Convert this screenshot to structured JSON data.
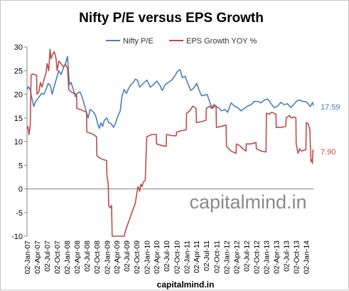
{
  "chart_data": {
    "type": "line",
    "title": "Nifty P/E versus EPS Growth",
    "xlabel": "",
    "ylabel": "",
    "ylim": [
      -10,
      30
    ],
    "y_ticks": [
      -10,
      -5,
      0,
      5,
      10,
      15,
      20,
      25,
      30
    ],
    "x_tick_labels": [
      "02-Jan-07",
      "02-Apr-07",
      "02-Jul-07",
      "02-Oct-07",
      "02-Jan-08",
      "02-Apr-08",
      "02-Jul-08",
      "02-Oct-08",
      "02-Jan-09",
      "02-Apr-09",
      "02-Jul-09",
      "02-Oct-09",
      "02-Jan-10",
      "02-Apr-10",
      "02-Jul-10",
      "02-Oct-10",
      "02-Jan-11",
      "02-Apr-11",
      "02-Jul-11",
      "02-Oct-11",
      "02-Jan-12",
      "02-Apr-12",
      "02-Jul-12",
      "02-Oct-12",
      "02-Jan-13",
      "02-Apr-13",
      "02-Jul-13",
      "02-Oct-13",
      "02-Jan-14"
    ],
    "xlim": [
      "2007-01-02",
      "2014-03-10"
    ],
    "grid": "horizontal-zero-line-only",
    "legend_position": "top",
    "watermark": "capitalmind.in",
    "footer": "capitalmind.in",
    "series": [
      {
        "name": "Nifty P/E",
        "color": "#4a7ebb",
        "end_label": "17.59",
        "points": [
          [
            "2007-01-02",
            21.0
          ],
          [
            "2007-01-15",
            21.6
          ],
          [
            "2007-02-01",
            20.9
          ],
          [
            "2007-02-15",
            19.2
          ],
          [
            "2007-03-05",
            17.4
          ],
          [
            "2007-03-20",
            18.4
          ],
          [
            "2007-04-05",
            18.9
          ],
          [
            "2007-04-25",
            19.5
          ],
          [
            "2007-05-15",
            20.2
          ],
          [
            "2007-06-05",
            20.0
          ],
          [
            "2007-06-25",
            21.0
          ],
          [
            "2007-07-15",
            22.3
          ],
          [
            "2007-08-05",
            21.8
          ],
          [
            "2007-08-20",
            20.0
          ],
          [
            "2007-09-10",
            21.8
          ],
          [
            "2007-10-01",
            23.5
          ],
          [
            "2007-10-20",
            25.0
          ],
          [
            "2007-11-10",
            24.2
          ],
          [
            "2007-12-01",
            25.5
          ],
          [
            "2007-12-20",
            26.5
          ],
          [
            "2008-01-08",
            28.0
          ],
          [
            "2008-01-25",
            22.0
          ],
          [
            "2008-02-10",
            22.5
          ],
          [
            "2008-03-01",
            21.0
          ],
          [
            "2008-03-20",
            19.5
          ],
          [
            "2008-04-10",
            20.3
          ],
          [
            "2008-05-01",
            20.5
          ],
          [
            "2008-05-20",
            19.5
          ],
          [
            "2008-06-10",
            17.8
          ],
          [
            "2008-06-30",
            16.2
          ],
          [
            "2008-07-15",
            15.0
          ],
          [
            "2008-08-01",
            16.8
          ],
          [
            "2008-08-20",
            16.5
          ],
          [
            "2008-09-10",
            16.0
          ],
          [
            "2008-09-25",
            15.2
          ],
          [
            "2008-10-10",
            13.8
          ],
          [
            "2008-10-25",
            12.8
          ],
          [
            "2008-11-10",
            14.0
          ],
          [
            "2008-11-25",
            13.2
          ],
          [
            "2008-12-10",
            14.5
          ],
          [
            "2009-01-02",
            15.0
          ],
          [
            "2009-01-20",
            14.0
          ],
          [
            "2009-02-10",
            13.8
          ],
          [
            "2009-03-05",
            13.0
          ],
          [
            "2009-03-25",
            14.0
          ],
          [
            "2009-04-15",
            15.5
          ],
          [
            "2009-05-05",
            16.5
          ],
          [
            "2009-05-20",
            19.5
          ],
          [
            "2009-06-10",
            21.0
          ],
          [
            "2009-07-01",
            20.2
          ],
          [
            "2009-07-20",
            21.2
          ],
          [
            "2009-08-10",
            22.0
          ],
          [
            "2009-09-01",
            22.5
          ],
          [
            "2009-09-20",
            23.2
          ],
          [
            "2009-10-10",
            23.0
          ],
          [
            "2009-10-30",
            21.5
          ],
          [
            "2009-11-20",
            22.0
          ],
          [
            "2009-12-10",
            22.5
          ],
          [
            "2010-01-05",
            23.0
          ],
          [
            "2010-02-05",
            21.5
          ],
          [
            "2010-03-05",
            22.0
          ],
          [
            "2010-04-05",
            22.8
          ],
          [
            "2010-05-05",
            21.8
          ],
          [
            "2010-05-25",
            20.8
          ],
          [
            "2010-06-20",
            22.0
          ],
          [
            "2010-07-20",
            22.5
          ],
          [
            "2010-08-20",
            23.0
          ],
          [
            "2010-09-20",
            24.0
          ],
          [
            "2010-10-10",
            24.8
          ],
          [
            "2010-11-05",
            25.2
          ],
          [
            "2010-11-25",
            23.5
          ],
          [
            "2010-12-20",
            23.8
          ],
          [
            "2011-01-20",
            22.0
          ],
          [
            "2011-02-10",
            20.8
          ],
          [
            "2011-03-05",
            21.2
          ],
          [
            "2011-04-05",
            22.3
          ],
          [
            "2011-04-25",
            21.0
          ],
          [
            "2011-05-20",
            19.7
          ],
          [
            "2011-06-20",
            19.8
          ],
          [
            "2011-07-10",
            20.0
          ],
          [
            "2011-08-05",
            18.2
          ],
          [
            "2011-08-25",
            17.0
          ],
          [
            "2011-09-20",
            17.5
          ],
          [
            "2011-10-20",
            17.2
          ],
          [
            "2011-11-20",
            16.5
          ],
          [
            "2011-12-20",
            16.8
          ],
          [
            "2012-01-15",
            16.2
          ],
          [
            "2012-02-15",
            18.2
          ],
          [
            "2012-03-15",
            17.5
          ],
          [
            "2012-04-15",
            17.2
          ],
          [
            "2012-05-15",
            16.5
          ],
          [
            "2012-06-15",
            17.0
          ],
          [
            "2012-07-15",
            17.5
          ],
          [
            "2012-08-15",
            17.8
          ],
          [
            "2012-09-15",
            18.5
          ],
          [
            "2012-10-15",
            18.5
          ],
          [
            "2012-11-15",
            18.2
          ],
          [
            "2012-12-15",
            18.8
          ],
          [
            "2013-01-15",
            19.0
          ],
          [
            "2013-02-15",
            18.0
          ],
          [
            "2013-03-15",
            17.2
          ],
          [
            "2013-04-15",
            17.5
          ],
          [
            "2013-05-15",
            18.3
          ],
          [
            "2013-06-15",
            17.8
          ],
          [
            "2013-07-15",
            18.0
          ],
          [
            "2013-08-15",
            17.2
          ],
          [
            "2013-09-10",
            17.8
          ],
          [
            "2013-10-05",
            18.5
          ],
          [
            "2013-11-01",
            18.8
          ],
          [
            "2013-12-01",
            18.5
          ],
          [
            "2014-01-01",
            18.4
          ],
          [
            "2014-01-20",
            18.0
          ],
          [
            "2014-02-10",
            17.4
          ],
          [
            "2014-03-01",
            18.3
          ],
          [
            "2014-03-10",
            17.59
          ]
        ]
      },
      {
        "name": "EPS Growth YOY %",
        "color": "#be4b48",
        "end_label": "7.90",
        "points": [
          [
            "2007-01-02",
            12.8
          ],
          [
            "2007-01-10",
            13.2
          ],
          [
            "2007-01-20",
            11.5
          ],
          [
            "2007-02-01",
            13.5
          ],
          [
            "2007-02-08",
            24.0
          ],
          [
            "2007-02-20",
            24.3
          ],
          [
            "2007-03-10",
            24.2
          ],
          [
            "2007-03-31",
            24.0
          ],
          [
            "2007-04-03",
            20.0
          ],
          [
            "2007-04-20",
            20.5
          ],
          [
            "2007-05-05",
            22.5
          ],
          [
            "2007-05-20",
            21.5
          ],
          [
            "2007-06-05",
            23.0
          ],
          [
            "2007-06-25",
            24.5
          ],
          [
            "2007-07-05",
            26.5
          ],
          [
            "2007-07-20",
            25.0
          ],
          [
            "2007-08-01",
            29.5
          ],
          [
            "2007-08-10",
            27.5
          ],
          [
            "2007-08-25",
            28.5
          ],
          [
            "2007-09-10",
            29.0
          ],
          [
            "2007-09-25",
            27.5
          ],
          [
            "2007-10-05",
            25.0
          ],
          [
            "2007-10-20",
            27.0
          ],
          [
            "2007-11-10",
            26.5
          ],
          [
            "2007-12-01",
            25.8
          ],
          [
            "2007-12-20",
            26.3
          ],
          [
            "2008-01-08",
            25.5
          ],
          [
            "2008-01-20",
            21.0
          ],
          [
            "2008-02-10",
            20.5
          ],
          [
            "2008-03-05",
            20.2
          ],
          [
            "2008-03-31",
            20.0
          ],
          [
            "2008-04-03",
            17.0
          ],
          [
            "2008-05-01",
            16.8
          ],
          [
            "2008-06-01",
            16.5
          ],
          [
            "2008-06-30",
            16.2
          ],
          [
            "2008-07-03",
            12.0
          ],
          [
            "2008-08-01",
            11.8
          ],
          [
            "2008-09-01",
            11.5
          ],
          [
            "2008-09-30",
            11.0
          ],
          [
            "2008-10-03",
            7.0
          ],
          [
            "2008-11-01",
            6.5
          ],
          [
            "2008-12-01",
            6.2
          ],
          [
            "2008-12-31",
            6.0
          ],
          [
            "2009-01-03",
            3.0
          ],
          [
            "2009-01-15",
            1.0
          ],
          [
            "2009-01-20",
            -3.5
          ],
          [
            "2009-02-01",
            -4.0
          ],
          [
            "2009-02-15",
            -3.5
          ],
          [
            "2009-02-20",
            -10.0
          ],
          [
            "2009-03-10",
            -10.0
          ],
          [
            "2009-04-10",
            -10.0
          ],
          [
            "2009-05-10",
            -10.0
          ],
          [
            "2009-06-10",
            -10.0
          ],
          [
            "2009-06-20",
            -9.0
          ],
          [
            "2009-07-05",
            -8.0
          ],
          [
            "2009-07-20",
            -7.0
          ],
          [
            "2009-08-05",
            -6.0
          ],
          [
            "2009-08-20",
            -5.0
          ],
          [
            "2009-09-05",
            -4.0
          ],
          [
            "2009-09-20",
            -3.0
          ],
          [
            "2009-10-03",
            -1.0
          ],
          [
            "2009-10-15",
            0.5
          ],
          [
            "2009-10-30",
            -0.5
          ],
          [
            "2009-11-10",
            1.0
          ],
          [
            "2009-11-20",
            0.5
          ],
          [
            "2009-12-05",
            1.5
          ],
          [
            "2009-12-20",
            1.8
          ],
          [
            "2010-01-03",
            11.0
          ],
          [
            "2010-01-20",
            11.2
          ],
          [
            "2010-02-20",
            11.5
          ],
          [
            "2010-03-31",
            11.5
          ],
          [
            "2010-04-03",
            9.5
          ],
          [
            "2010-05-15",
            9.2
          ],
          [
            "2010-06-30",
            9.0
          ],
          [
            "2010-07-03",
            11.5
          ],
          [
            "2010-08-15",
            11.3
          ],
          [
            "2010-09-30",
            11.2
          ],
          [
            "2010-10-03",
            12.0
          ],
          [
            "2010-11-15",
            12.3
          ],
          [
            "2010-12-31",
            12.5
          ],
          [
            "2011-01-03",
            16.0
          ],
          [
            "2011-02-01",
            16.5
          ],
          [
            "2011-03-01",
            17.5
          ],
          [
            "2011-03-31",
            17.0
          ],
          [
            "2011-04-03",
            14.0
          ],
          [
            "2011-05-15",
            14.2
          ],
          [
            "2011-06-30",
            14.5
          ],
          [
            "2011-07-03",
            17.0
          ],
          [
            "2011-08-01",
            17.5
          ],
          [
            "2011-08-20",
            17.0
          ],
          [
            "2011-09-10",
            17.8
          ],
          [
            "2011-09-30",
            17.5
          ],
          [
            "2011-10-03",
            13.0
          ],
          [
            "2011-11-15",
            13.2
          ],
          [
            "2011-12-31",
            13.5
          ],
          [
            "2012-01-03",
            9.0
          ],
          [
            "2012-02-15",
            8.0
          ],
          [
            "2012-03-31",
            7.5
          ],
          [
            "2012-04-03",
            9.5
          ],
          [
            "2012-05-01",
            9.2
          ],
          [
            "2012-06-01",
            8.5
          ],
          [
            "2012-06-30",
            8.0
          ],
          [
            "2012-07-03",
            9.5
          ],
          [
            "2012-08-15",
            9.5
          ],
          [
            "2012-09-30",
            9.8
          ],
          [
            "2012-10-03",
            8.5
          ],
          [
            "2012-11-15",
            8.0
          ],
          [
            "2012-12-31",
            7.8
          ],
          [
            "2013-01-03",
            16.0
          ],
          [
            "2013-02-01",
            15.8
          ],
          [
            "2013-02-20",
            16.2
          ],
          [
            "2013-03-31",
            15.8
          ],
          [
            "2013-04-03",
            13.0
          ],
          [
            "2013-05-15",
            13.0
          ],
          [
            "2013-06-30",
            13.2
          ],
          [
            "2013-07-03",
            15.0
          ],
          [
            "2013-08-01",
            15.5
          ],
          [
            "2013-08-20",
            15.0
          ],
          [
            "2013-09-15",
            15.2
          ],
          [
            "2013-09-30",
            15.0
          ],
          [
            "2013-10-03",
            9.5
          ],
          [
            "2013-10-20",
            7.5
          ],
          [
            "2013-11-05",
            8.5
          ],
          [
            "2013-11-20",
            8.0
          ],
          [
            "2013-12-31",
            8.3
          ],
          [
            "2014-01-03",
            14.0
          ],
          [
            "2014-01-20",
            13.8
          ],
          [
            "2014-02-05",
            12.5
          ],
          [
            "2014-02-15",
            5.8
          ],
          [
            "2014-02-22",
            6.2
          ],
          [
            "2014-03-01",
            5.4
          ],
          [
            "2014-03-05",
            8.2
          ],
          [
            "2014-03-10",
            7.9
          ]
        ]
      }
    ]
  }
}
